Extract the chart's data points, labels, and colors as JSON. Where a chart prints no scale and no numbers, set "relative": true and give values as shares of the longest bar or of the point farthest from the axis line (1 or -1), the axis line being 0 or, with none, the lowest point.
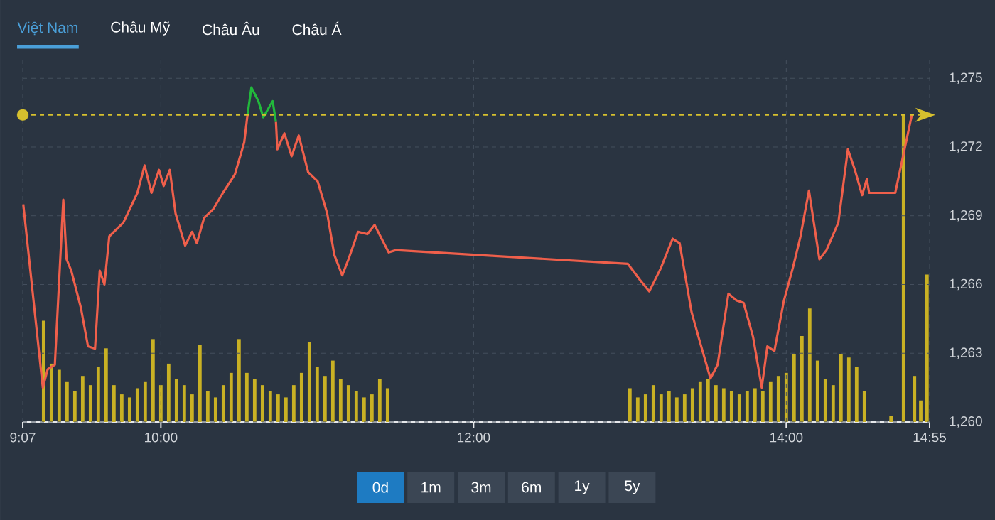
{
  "chart_data": [
    {
      "type": "line",
      "annotations": [
        "Việt Nam",
        "Châu Mỹ",
        "Châu Âu",
        "Châu Á"
      ],
      "xlim": [
        9.1167,
        14.9167
      ],
      "xticks": [
        {
          "value": 9.1167,
          "label": null
        },
        {
          "value": 10,
          "label": null
        },
        {
          "value": 12,
          "label": null
        },
        {
          "value": 14,
          "label": null
        },
        {
          "value": 14.9167,
          "label": null
        }
      ],
      "ylim": [
        1260,
        1276
      ],
      "tick_labels": "y",
      "yticks": [
        {
          "value": 1260,
          "label": "1,260"
        },
        {
          "value": 1263,
          "label": "1,263"
        },
        {
          "value": 1266,
          "label": "1,266"
        },
        {
          "value": 1269,
          "label": "1,269"
        },
        {
          "value": 1272,
          "label": "1,272"
        },
        {
          "value": 1275,
          "label": "1,275"
        }
      ],
      "grid": true,
      "ref_lines": [
        {
          "axis": "y",
          "value": 1273.4,
          "color": "#d6c02e",
          "line_style": "dashed"
        }
      ],
      "series": [
        {
          "color": "#ef5f4b",
          "x": [
            9.12,
            9.245,
            9.276,
            9.322,
            9.376,
            9.397,
            9.427,
            9.488,
            9.534,
            9.579,
            9.609,
            9.639,
            9.67,
            9.76,
            9.85,
            9.896,
            9.94,
            9.988,
            10.018,
            10.057,
            10.094,
            10.155,
            10.2,
            10.23,
            10.276,
            10.336,
            10.397,
            10.473,
            10.533,
            10.554,
            10.6,
            10.736,
            10.745,
            10.79,
            10.836,
            10.882,
            10.942,
            11.003,
            11.064,
            11.109,
            11.16,
            11.2,
            11.261,
            11.321,
            11.367,
            11.412,
            11.457,
            11.503,
            12.987,
            13.064,
            13.124,
            13.197,
            13.273,
            13.318,
            13.394,
            13.439,
            13.515,
            13.561,
            13.63,
            13.682,
            13.727,
            13.788,
            13.843,
            13.879,
            13.924,
            13.985,
            14.045,
            14.091,
            14.145,
            14.212,
            14.257,
            14.333,
            14.394,
            14.439,
            14.485,
            14.515,
            14.53,
            14.697,
            14.803
          ],
          "values": [
            1269.5,
            1261.5,
            1262.3,
            1262.5,
            1269.7,
            1267.1,
            1266.6,
            1265,
            1263.3,
            1263.2,
            1266.6,
            1266,
            1268.1,
            1268.7,
            1270,
            1271.2,
            1270,
            1271,
            1270.3,
            1271,
            1269.1,
            1267.7,
            1268.3,
            1267.8,
            1268.9,
            1269.3,
            1270,
            1270.8,
            1272.2,
            1273.4,
            null,
            1273.1,
            1271.9,
            1272.6,
            1271.6,
            1272.5,
            1270.9,
            1270.5,
            1269.1,
            1267.3,
            1266.4,
            1267.1,
            1268.3,
            1268.2,
            1268.6,
            1268,
            1267.4,
            1267.5,
            1266.9,
            1266.2,
            1265.7,
            1266.7,
            1268,
            1267.8,
            1264.8,
            1263.7,
            1261.9,
            1262.5,
            1265.6,
            1265.3,
            1265.2,
            1263.7,
            1261.5,
            1263.3,
            1263.1,
            1265.3,
            1266.8,
            1268.1,
            1270.1,
            1267.1,
            1267.5,
            1268.7,
            1271.9,
            1271,
            1269.9,
            1270.6,
            1270,
            1270,
            1273.4
          ]
        },
        {
          "type": "scatter",
          "color": "#d6c02e",
          "x": [
            9.1167
          ],
          "values": [
            1273.4
          ]
        },
        {
          "color": "#22b83c",
          "x": [
            10.554,
            10.579,
            10.624,
            10.655,
            10.715,
            10.736
          ],
          "values": [
            1273.4,
            1274.6,
            1274,
            1273.3,
            1274,
            1273.1
          ]
        }
      ]
    },
    {
      "type": "bar",
      "relative": true,
      "color": "#c9b124",
      "annotations": [
        "0d",
        "1m",
        "3m",
        "6m",
        "1y",
        "5y"
      ],
      "tick_labels": "x",
      "xlim": [
        9.1167,
        14.9167
      ],
      "xticks": [
        {
          "value": 9.1167,
          "label": "9:07"
        },
        {
          "value": 10,
          "label": "10:00"
        },
        {
          "value": 12,
          "label": "12:00"
        },
        {
          "value": 14,
          "label": "14:00"
        },
        {
          "value": 14.9167,
          "label": "14:55"
        }
      ],
      "x": [
        9.25,
        9.3,
        9.35,
        9.4,
        9.45,
        9.5,
        9.55,
        9.6,
        9.65,
        9.7,
        9.75,
        9.8,
        9.85,
        9.9,
        9.95,
        10,
        10.05,
        10.1,
        10.15,
        10.2,
        10.25,
        10.3,
        10.35,
        10.4,
        10.45,
        10.5,
        10.55,
        10.6,
        10.65,
        10.7,
        10.75,
        10.8,
        10.85,
        10.9,
        10.95,
        11,
        11.05,
        11.1,
        11.15,
        11.2,
        11.25,
        11.3,
        11.35,
        11.4,
        11.45,
        13,
        13.05,
        13.1,
        13.15,
        13.2,
        13.25,
        13.3,
        13.35,
        13.4,
        13.45,
        13.5,
        13.55,
        13.6,
        13.65,
        13.7,
        13.75,
        13.8,
        13.85,
        13.9,
        13.95,
        14,
        14.05,
        14.1,
        14.15,
        14.2,
        14.25,
        14.3,
        14.35,
        14.4,
        14.45,
        14.5,
        14.67,
        14.75,
        14.82,
        14.86,
        14.9
      ],
      "values": [
        0.33,
        0.19,
        0.17,
        0.13,
        0.1,
        0.15,
        0.12,
        0.18,
        0.24,
        0.12,
        0.09,
        0.08,
        0.11,
        0.13,
        0.27,
        0.12,
        0.19,
        0.14,
        0.12,
        0.09,
        0.25,
        0.1,
        0.08,
        0.12,
        0.16,
        0.27,
        0.16,
        0.14,
        0.12,
        0.1,
        0.09,
        0.08,
        0.12,
        0.16,
        0.26,
        0.18,
        0.15,
        0.2,
        0.14,
        0.12,
        0.1,
        0.08,
        0.09,
        0.14,
        0.11,
        0.11,
        0.08,
        0.09,
        0.12,
        0.09,
        0.1,
        0.08,
        0.09,
        0.11,
        0.13,
        0.14,
        0.12,
        0.11,
        0.1,
        0.09,
        0.1,
        0.11,
        0.1,
        0.13,
        0.15,
        0.16,
        0.22,
        0.28,
        0.37,
        0.2,
        0.14,
        0.12,
        0.22,
        0.21,
        0.18,
        0.1,
        0.02,
        1,
        0.15,
        0.07,
        0.48
      ]
    }
  ]
}
